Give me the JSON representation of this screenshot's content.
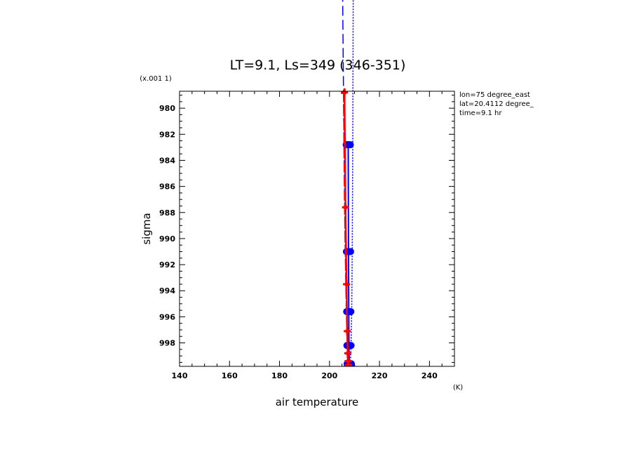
{
  "chart_data": {
    "type": "line",
    "title": "LT=9.1, Ls=349 (346-351)",
    "xlabel": "air temperature",
    "ylabel": "sigma",
    "x_unit": "(K)",
    "y_scale_note": "(x.001 1)",
    "xlim": [
      140,
      250
    ],
    "ylim": [
      999.8,
      978.7
    ],
    "y_inverted": true,
    "grid": false,
    "x_ticks": [
      "140",
      "160",
      "180",
      "200",
      "220",
      "240"
    ],
    "y_ticks": [
      "980",
      "982",
      "984",
      "986",
      "988",
      "990",
      "992",
      "994",
      "996",
      "998"
    ],
    "annotations": [
      "lon=75 degree_east",
      "lat=20.4112 degree_",
      "time=9.1 hr"
    ],
    "series": [
      {
        "style": "blue-solid-markers",
        "color": "#0000ff",
        "x": [
          207.5,
          207.6,
          207.7,
          207.8,
          207.9,
          208.0
        ],
        "y": [
          982.8,
          991.0,
          995.6,
          998.2,
          999.6,
          999.7
        ]
      },
      {
        "style": "blue-dotted",
        "color": "#0000ff",
        "x": [
          209.5,
          209.3,
          209.1,
          208.9,
          208.6,
          208.3
        ],
        "y": [
          970.0,
          982.8,
          991.0,
          995.6,
          998.2,
          999.7
        ]
      },
      {
        "style": "blue-long-dash",
        "color": "#0000ff",
        "x": [
          205.2,
          205.8,
          206.3,
          206.8,
          207.1,
          207.3
        ],
        "y": [
          970.0,
          982.8,
          991.0,
          995.6,
          998.2,
          999.7
        ]
      },
      {
        "style": "red-solid-markers",
        "color": "#ff0000",
        "x": [
          206.0,
          206.4,
          206.8,
          207.1,
          207.3,
          207.4,
          207.6
        ],
        "y": [
          978.8,
          987.6,
          993.5,
          997.1,
          998.8,
          999.4,
          999.7
        ]
      },
      {
        "style": "red-long-dash",
        "color": "#ff0000",
        "x": [
          205.6,
          206.0,
          206.5,
          206.9,
          207.2,
          207.5
        ],
        "y": [
          978.8,
          987.6,
          993.5,
          997.1,
          998.8,
          999.7
        ]
      }
    ]
  }
}
